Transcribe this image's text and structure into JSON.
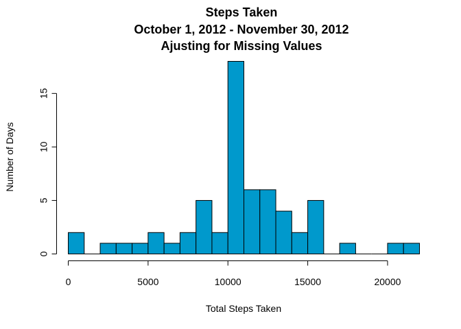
{
  "chart_data": {
    "type": "bar",
    "subtype": "histogram",
    "title_lines": [
      "Steps Taken",
      "October 1, 2012 - November 30, 2012",
      "Ajusting for Missing Values"
    ],
    "xlabel": "Total Steps Taken",
    "ylabel": "Number of Days",
    "bin_width": 1000,
    "bins": [
      {
        "start": 0,
        "end": 1000,
        "count": 2
      },
      {
        "start": 1000,
        "end": 2000,
        "count": 0
      },
      {
        "start": 2000,
        "end": 3000,
        "count": 1
      },
      {
        "start": 3000,
        "end": 4000,
        "count": 1
      },
      {
        "start": 4000,
        "end": 5000,
        "count": 1
      },
      {
        "start": 5000,
        "end": 6000,
        "count": 2
      },
      {
        "start": 6000,
        "end": 7000,
        "count": 1
      },
      {
        "start": 7000,
        "end": 8000,
        "count": 2
      },
      {
        "start": 8000,
        "end": 9000,
        "count": 5
      },
      {
        "start": 9000,
        "end": 10000,
        "count": 2
      },
      {
        "start": 10000,
        "end": 11000,
        "count": 18
      },
      {
        "start": 11000,
        "end": 12000,
        "count": 6
      },
      {
        "start": 12000,
        "end": 13000,
        "count": 6
      },
      {
        "start": 13000,
        "end": 14000,
        "count": 4
      },
      {
        "start": 14000,
        "end": 15000,
        "count": 2
      },
      {
        "start": 15000,
        "end": 16000,
        "count": 5
      },
      {
        "start": 16000,
        "end": 17000,
        "count": 0
      },
      {
        "start": 17000,
        "end": 18000,
        "count": 1
      },
      {
        "start": 18000,
        "end": 19000,
        "count": 0
      },
      {
        "start": 19000,
        "end": 20000,
        "count": 0
      },
      {
        "start": 20000,
        "end": 21000,
        "count": 1
      },
      {
        "start": 21000,
        "end": 22000,
        "count": 1
      }
    ],
    "xlim": [
      0,
      22000
    ],
    "ylim": [
      0,
      18
    ],
    "x_ticks": [
      0,
      5000,
      10000,
      15000,
      20000
    ],
    "x_tick_labels": [
      "0",
      "5000",
      "10000",
      "15000",
      "20000"
    ],
    "y_ticks": [
      0,
      5,
      10,
      15
    ],
    "y_tick_labels": [
      "0",
      "5",
      "10",
      "15"
    ],
    "bar_color": "#0099CC",
    "bar_edge_color": "#000000",
    "grid": false
  }
}
